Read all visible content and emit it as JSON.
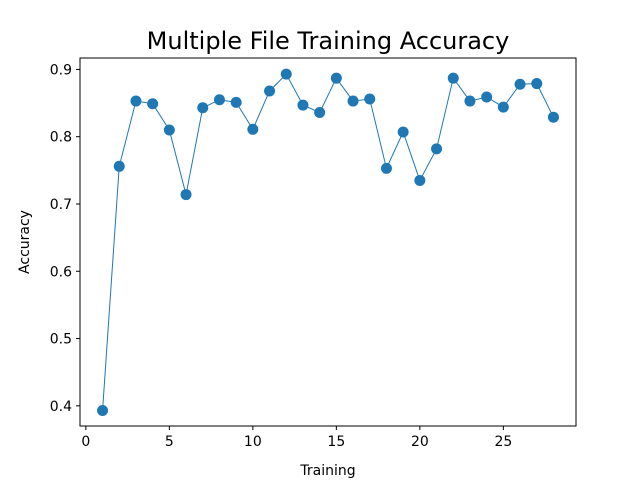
{
  "chart_data": {
    "type": "line",
    "title": "Multiple File Training Accuracy",
    "xlabel": "Training",
    "ylabel": "Accuracy",
    "xlim": [
      -0.35,
      29.35
    ],
    "ylim": [
      0.37,
      0.917
    ],
    "grid": false,
    "x_ticks": [
      0,
      5,
      10,
      15,
      20,
      25
    ],
    "y_ticks": [
      0.4,
      0.5,
      0.6,
      0.7,
      0.8,
      0.9
    ],
    "x_tick_labels": [
      "0",
      "5",
      "10",
      "15",
      "20",
      "25"
    ],
    "y_tick_labels": [
      "0.4",
      "0.5",
      "0.6",
      "0.7",
      "0.8",
      "0.9"
    ],
    "color": "#1f77b4",
    "marker": "circle",
    "x": [
      1,
      2,
      3,
      4,
      5,
      6,
      7,
      8,
      9,
      10,
      11,
      12,
      13,
      14,
      15,
      16,
      17,
      18,
      19,
      20,
      21,
      22,
      23,
      24,
      25,
      26,
      27,
      28
    ],
    "series": [
      {
        "values": [
          0.393,
          0.756,
          0.853,
          0.849,
          0.81,
          0.714,
          0.843,
          0.855,
          0.851,
          0.811,
          0.868,
          0.893,
          0.847,
          0.836,
          0.887,
          0.853,
          0.856,
          0.753,
          0.807,
          0.735,
          0.782,
          0.887,
          0.853,
          0.859,
          0.844,
          0.878,
          0.879,
          0.829
        ]
      }
    ]
  }
}
